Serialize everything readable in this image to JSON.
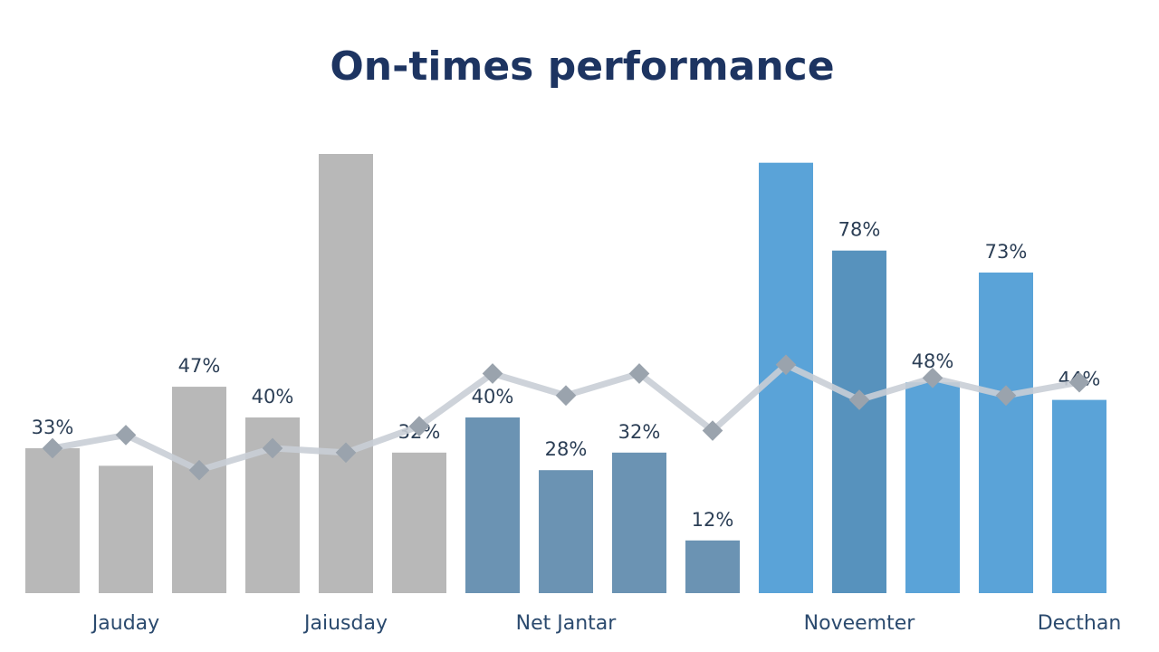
{
  "chart_data": {
    "type": "bar",
    "title": "On-times performance",
    "categories": [
      null,
      "Jauday",
      null,
      null,
      "Jaiusday",
      null,
      null,
      "Net Jantar",
      null,
      null,
      null,
      "Noveemter",
      null,
      null,
      "Decthan"
    ],
    "values": [
      33,
      29,
      47,
      40,
      100,
      32,
      40,
      28,
      32,
      12,
      98,
      78,
      48,
      73,
      44
    ],
    "value_labels": [
      "33%",
      null,
      "47%",
      "40%",
      null,
      "32%",
      "40%",
      "28%",
      "32%",
      "12%",
      null,
      "78%",
      "48%",
      "73%",
      "44%"
    ],
    "colors": [
      "#b8b8b8",
      "#b8b8b8",
      "#b8b8b8",
      "#b8b8b8",
      "#b8b8b8",
      "#b8b8b8",
      "#6b93b3",
      "#6b93b3",
      "#6b93b3",
      "#6b93b3",
      "#5aa3d8",
      "#5792bd",
      "#5aa3d8",
      "#5aa3d8",
      "#5aa3d8"
    ],
    "line": {
      "color": "#c9ced6",
      "values": [
        33,
        36,
        28,
        33,
        32,
        38,
        50,
        45,
        50,
        37,
        52,
        44,
        49,
        45,
        48
      ]
    },
    "ylim": [
      0,
      100
    ]
  }
}
